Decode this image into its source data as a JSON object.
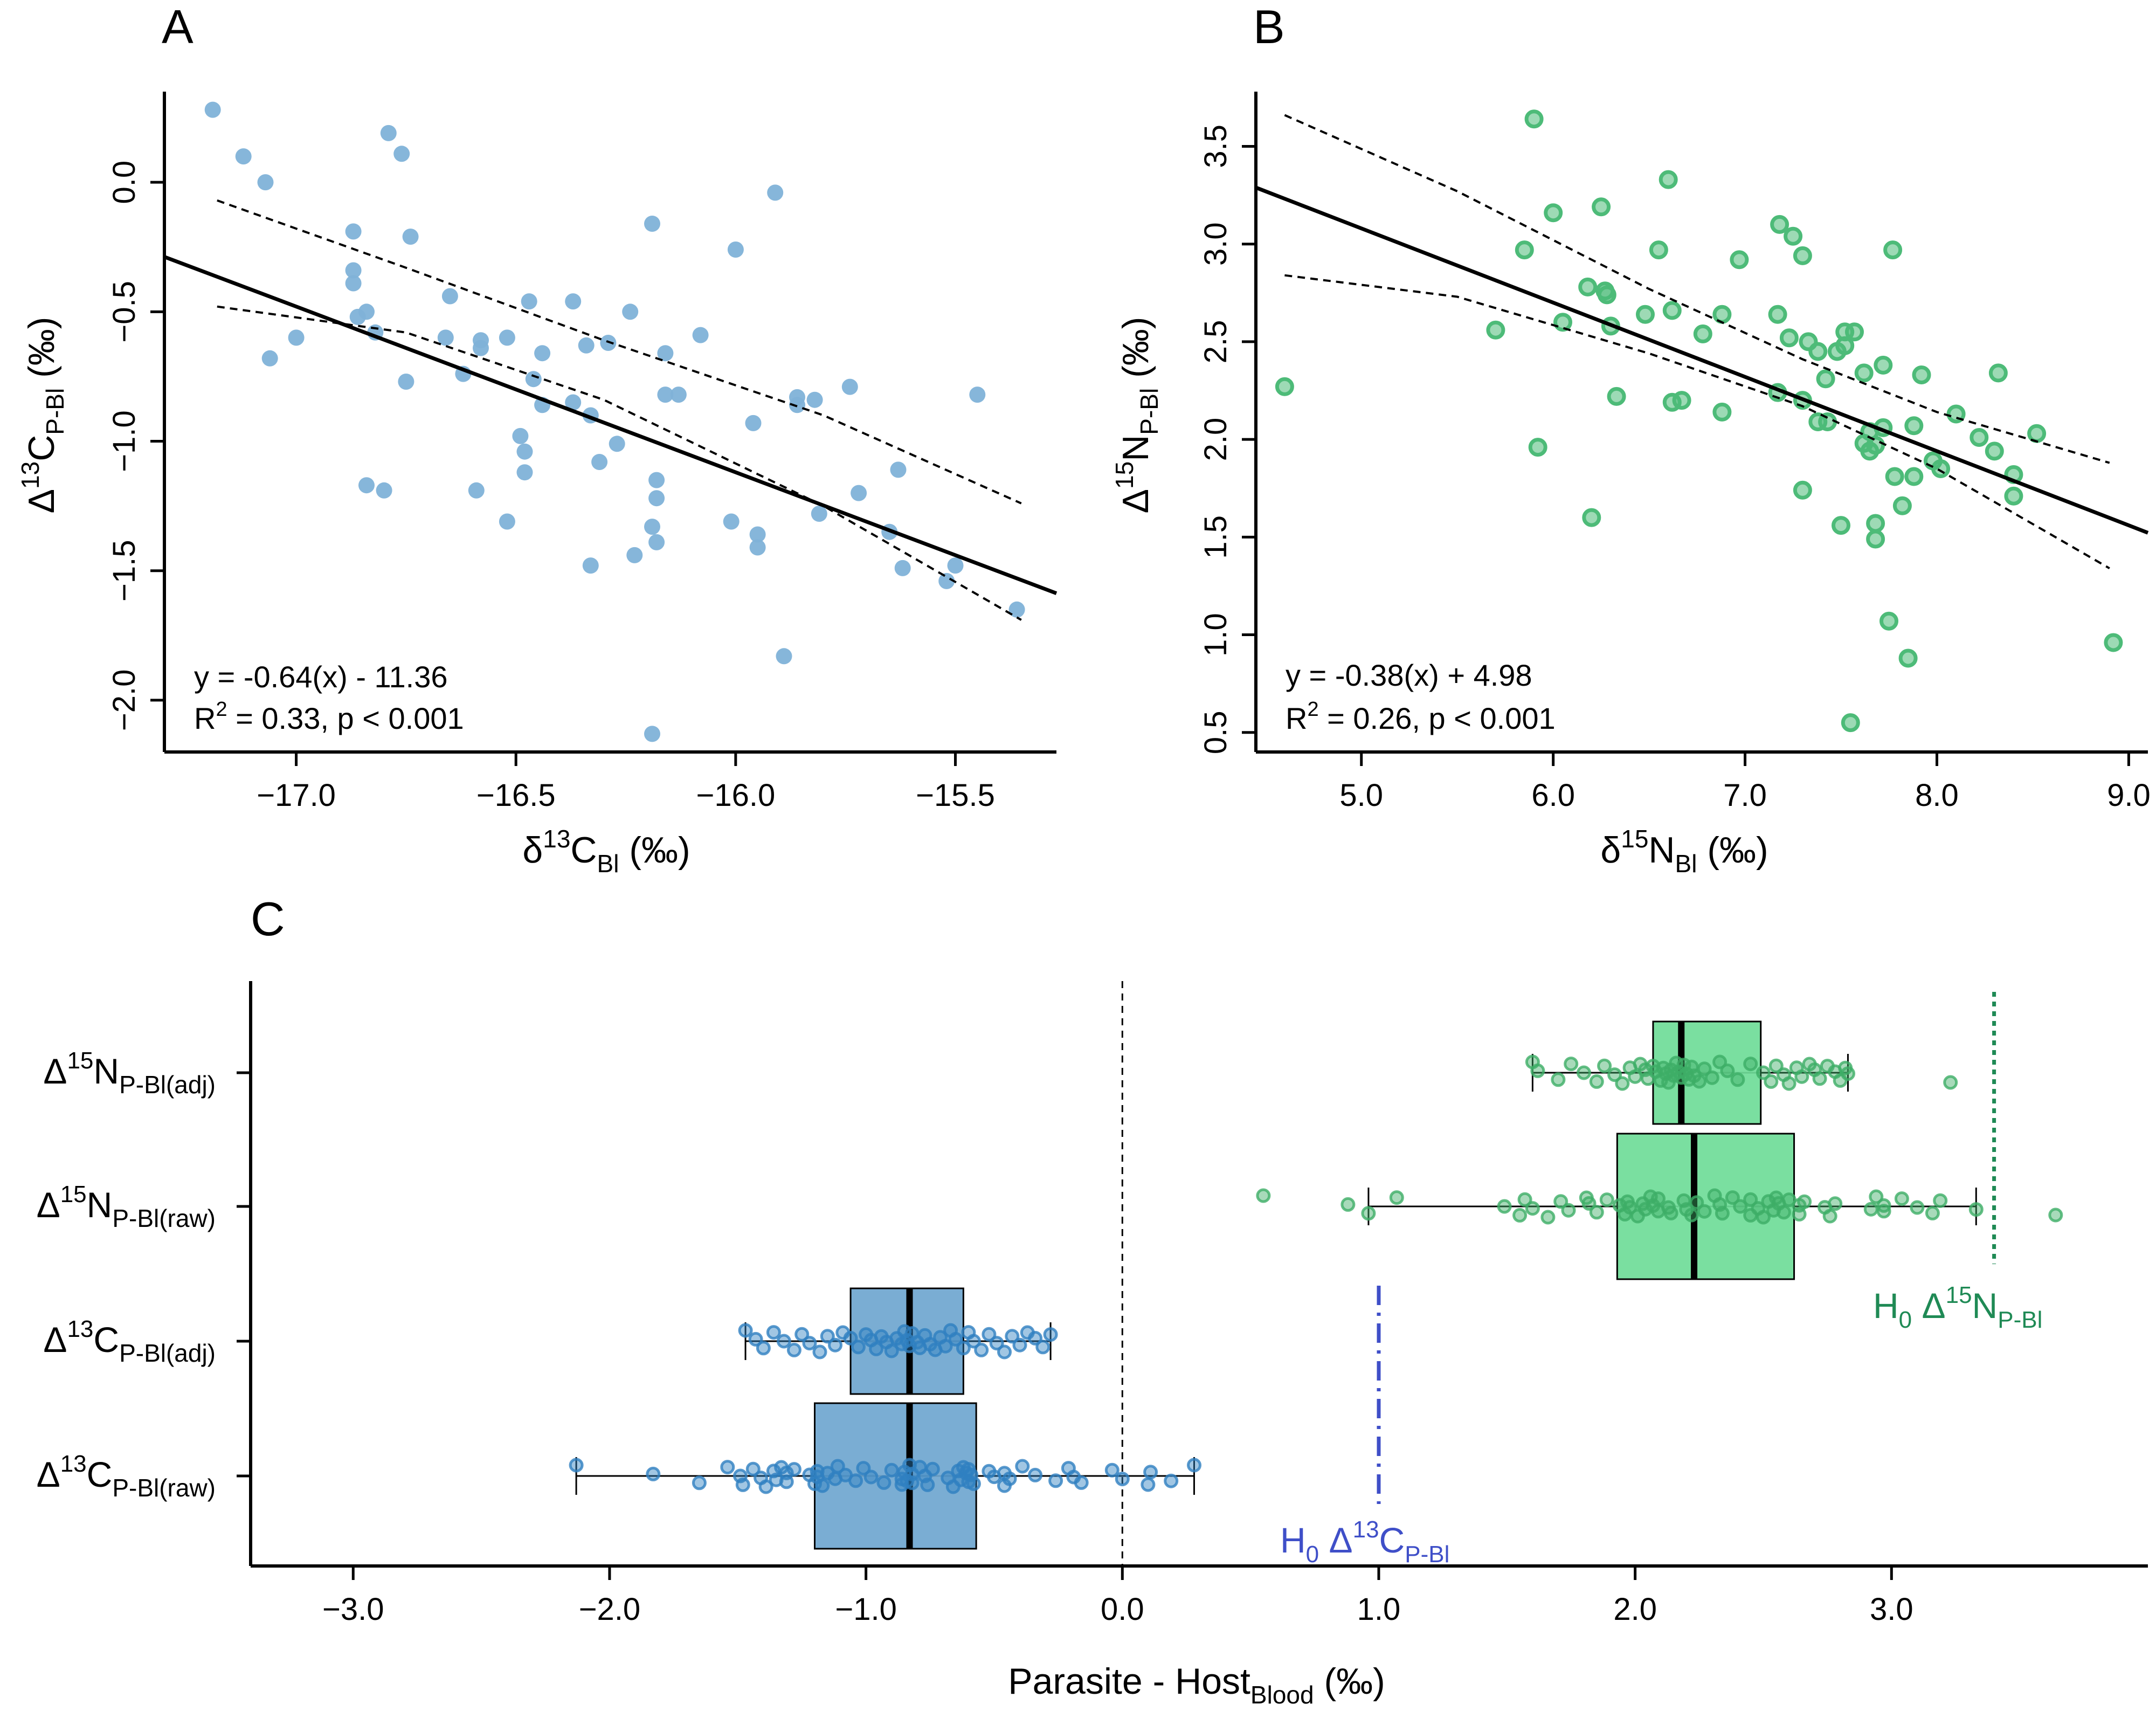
{
  "colors": {
    "carbon_point": "#7FB2D8",
    "nitrogen_point": "#4DBB78",
    "carbon_box": "#6FA6CF",
    "nitrogen_box": "#6FDC98",
    "carbon_strip": "#2F80C0",
    "nitrogen_strip": "#3DAE66",
    "h0_carbon": "#3F4FC8",
    "h0_nitrogen": "#1F8A55",
    "axis": "#000000"
  },
  "chart_data": [
    {
      "panel": "A",
      "type": "scatter",
      "xlabel": {
        "main": "δ",
        "sup": "13",
        "mid": "C",
        "sub": "Bl",
        "tail": " (‰)"
      },
      "ylabel": {
        "main": "Δ",
        "sup": "13",
        "mid": "C",
        "sub": "P-Bl",
        "tail": " (‰)"
      },
      "xlim": [
        -17.3,
        -15.27
      ],
      "ylim": [
        -2.2,
        0.35
      ],
      "xticks": [
        -17.0,
        -16.5,
        -16.0,
        -15.5
      ],
      "xtick_labels": [
        "−17.0",
        "−16.5",
        "−16.0",
        "−15.5"
      ],
      "yticks": [
        -2.0,
        -1.5,
        -1.0,
        -0.5,
        0.0
      ],
      "ytick_labels": [
        "−2.0",
        "−1.5",
        "−1.0",
        "−0.5",
        "0.0"
      ],
      "regression": {
        "slope": -0.64,
        "intercept": -11.36
      },
      "ci_upper": [
        [
          -17.18,
          -0.07
        ],
        [
          -16.75,
          -0.33
        ],
        [
          -16.3,
          -0.61
        ],
        [
          -15.8,
          -0.9
        ],
        [
          -15.35,
          -1.24
        ]
      ],
      "ci_lower": [
        [
          -17.18,
          -0.48
        ],
        [
          -16.75,
          -0.58
        ],
        [
          -16.3,
          -0.84
        ],
        [
          -15.8,
          -1.25
        ],
        [
          -15.35,
          -1.69
        ]
      ],
      "annotation": [
        "y = -0.64(x) - 11.36",
        "R",
        "2",
        " = 0.33, p < 0.001"
      ],
      "points": [
        [
          -17.19,
          0.28
        ],
        [
          -17.12,
          0.1
        ],
        [
          -17.07,
          0.0
        ],
        [
          -16.79,
          0.19
        ],
        [
          -16.76,
          0.11
        ],
        [
          -16.87,
          -0.19
        ],
        [
          -16.87,
          -0.34
        ],
        [
          -16.87,
          -0.39
        ],
        [
          -16.74,
          -0.21
        ],
        [
          -16.86,
          -0.52
        ],
        [
          -16.84,
          -0.5
        ],
        [
          -16.82,
          -0.58
        ],
        [
          -17.0,
          -0.6
        ],
        [
          -17.06,
          -0.68
        ],
        [
          -16.65,
          -0.44
        ],
        [
          -16.66,
          -0.6
        ],
        [
          -16.58,
          -0.61
        ],
        [
          -16.58,
          -0.64
        ],
        [
          -16.52,
          -0.6
        ],
        [
          -16.47,
          -0.46
        ],
        [
          -16.37,
          -0.46
        ],
        [
          -16.44,
          -0.66
        ],
        [
          -16.34,
          -0.63
        ],
        [
          -16.29,
          -0.62
        ],
        [
          -16.24,
          -0.5
        ],
        [
          -16.19,
          -0.16
        ],
        [
          -16.08,
          -0.59
        ],
        [
          -16.16,
          -0.66
        ],
        [
          -16.0,
          -0.26
        ],
        [
          -15.91,
          -0.04
        ],
        [
          -16.62,
          -0.74
        ],
        [
          -16.46,
          -0.76
        ],
        [
          -16.75,
          -0.77
        ],
        [
          -16.44,
          -0.86
        ],
        [
          -16.37,
          -0.85
        ],
        [
          -16.33,
          -0.9
        ],
        [
          -16.16,
          -0.82
        ],
        [
          -16.13,
          -0.82
        ],
        [
          -15.96,
          -0.93
        ],
        [
          -15.86,
          -0.83
        ],
        [
          -15.86,
          -0.86
        ],
        [
          -15.82,
          -0.84
        ],
        [
          -15.74,
          -0.79
        ],
        [
          -15.45,
          -0.82
        ],
        [
          -16.49,
          -0.98
        ],
        [
          -16.48,
          -1.04
        ],
        [
          -16.31,
          -1.08
        ],
        [
          -16.27,
          -1.01
        ],
        [
          -16.48,
          -1.12
        ],
        [
          -16.84,
          -1.17
        ],
        [
          -16.8,
          -1.19
        ],
        [
          -16.59,
          -1.19
        ],
        [
          -16.18,
          -1.15
        ],
        [
          -16.18,
          -1.22
        ],
        [
          -15.63,
          -1.11
        ],
        [
          -15.72,
          -1.2
        ],
        [
          -15.81,
          -1.28
        ],
        [
          -16.01,
          -1.31
        ],
        [
          -16.52,
          -1.31
        ],
        [
          -16.19,
          -1.33
        ],
        [
          -16.18,
          -1.39
        ],
        [
          -15.95,
          -1.36
        ],
        [
          -15.95,
          -1.41
        ],
        [
          -15.65,
          -1.35
        ],
        [
          -16.23,
          -1.44
        ],
        [
          -16.33,
          -1.48
        ],
        [
          -15.62,
          -1.49
        ],
        [
          -15.5,
          -1.48
        ],
        [
          -15.52,
          -1.54
        ],
        [
          -15.36,
          -1.65
        ],
        [
          -15.89,
          -1.83
        ],
        [
          -16.19,
          -2.13
        ]
      ]
    },
    {
      "panel": "B",
      "type": "scatter",
      "xlabel": {
        "main": "δ",
        "sup": "15",
        "mid": "N",
        "sub": "Bl",
        "tail": " (‰)"
      },
      "ylabel": {
        "main": "Δ",
        "sup": "15",
        "mid": "N",
        "sub": "P-Bl",
        "tail": " (‰)"
      },
      "xlim": [
        4.45,
        9.1
      ],
      "ylim": [
        0.4,
        3.78
      ],
      "xticks": [
        5.0,
        6.0,
        7.0,
        8.0,
        9.0
      ],
      "xtick_labels": [
        "5.0",
        "6.0",
        "7.0",
        "8.0",
        "9.0"
      ],
      "yticks": [
        0.5,
        1.0,
        1.5,
        2.0,
        2.5,
        3.0,
        3.5
      ],
      "ytick_labels": [
        "0.5",
        "1.0",
        "1.5",
        "2.0",
        "2.5",
        "3.0",
        "3.5"
      ],
      "regression": {
        "slope": -0.38,
        "intercept": 4.98
      },
      "ci_upper": [
        [
          4.6,
          3.66
        ],
        [
          5.5,
          3.27
        ],
        [
          6.5,
          2.77
        ],
        [
          7.3,
          2.41
        ],
        [
          8.0,
          2.14
        ],
        [
          8.9,
          1.88
        ]
      ],
      "ci_lower": [
        [
          4.6,
          2.84
        ],
        [
          5.5,
          2.73
        ],
        [
          6.5,
          2.44
        ],
        [
          7.3,
          2.17
        ],
        [
          8.0,
          1.85
        ],
        [
          8.9,
          1.34
        ]
      ],
      "annotation": [
        "y = -0.38(x) + 4.98",
        "R",
        "2",
        " = 0.26, p < 0.001"
      ],
      "points": [
        [
          4.6,
          2.27
        ],
        [
          5.9,
          3.64
        ],
        [
          6.6,
          3.33
        ],
        [
          5.85,
          2.97
        ],
        [
          6.0,
          3.16
        ],
        [
          6.25,
          3.19
        ],
        [
          6.55,
          2.97
        ],
        [
          7.18,
          3.1
        ],
        [
          7.25,
          3.04
        ],
        [
          7.3,
          2.94
        ],
        [
          6.97,
          2.92
        ],
        [
          7.77,
          2.97
        ],
        [
          6.18,
          2.78
        ],
        [
          6.27,
          2.76
        ],
        [
          6.28,
          2.74
        ],
        [
          6.62,
          2.66
        ],
        [
          6.48,
          2.64
        ],
        [
          6.88,
          2.64
        ],
        [
          7.17,
          2.64
        ],
        [
          6.78,
          2.54
        ],
        [
          6.05,
          2.6
        ],
        [
          6.3,
          2.58
        ],
        [
          5.7,
          2.56
        ],
        [
          7.23,
          2.52
        ],
        [
          7.33,
          2.5
        ],
        [
          7.52,
          2.48
        ],
        [
          7.57,
          2.55
        ],
        [
          7.52,
          2.55
        ],
        [
          7.48,
          2.45
        ],
        [
          7.38,
          2.45
        ],
        [
          7.62,
          2.34
        ],
        [
          7.72,
          2.38
        ],
        [
          7.42,
          2.31
        ],
        [
          7.92,
          2.33
        ],
        [
          8.32,
          2.34
        ],
        [
          7.17,
          2.24
        ],
        [
          6.33,
          2.22
        ],
        [
          6.62,
          2.19
        ],
        [
          6.67,
          2.2
        ],
        [
          7.3,
          2.2
        ],
        [
          6.88,
          2.14
        ],
        [
          7.38,
          2.09
        ],
        [
          7.43,
          2.09
        ],
        [
          7.65,
          2.04
        ],
        [
          7.72,
          2.06
        ],
        [
          7.88,
          2.07
        ],
        [
          8.1,
          2.13
        ],
        [
          8.22,
          2.01
        ],
        [
          8.52,
          2.03
        ],
        [
          8.3,
          1.94
        ],
        [
          7.62,
          1.98
        ],
        [
          7.65,
          1.94
        ],
        [
          7.68,
          1.97
        ],
        [
          7.98,
          1.89
        ],
        [
          8.02,
          1.85
        ],
        [
          5.92,
          1.96
        ],
        [
          7.78,
          1.81
        ],
        [
          7.88,
          1.81
        ],
        [
          8.4,
          1.82
        ],
        [
          7.3,
          1.74
        ],
        [
          8.4,
          1.71
        ],
        [
          7.82,
          1.66
        ],
        [
          7.5,
          1.56
        ],
        [
          7.68,
          1.57
        ],
        [
          7.68,
          1.49
        ],
        [
          6.2,
          1.6
        ],
        [
          7.75,
          1.07
        ],
        [
          7.85,
          0.88
        ],
        [
          8.92,
          0.96
        ],
        [
          7.55,
          0.55
        ]
      ]
    },
    {
      "panel": "C",
      "type": "box",
      "xlabel": {
        "main": "Parasite - Host",
        "sub": "Blood",
        "tail": " (‰)"
      },
      "xlim": [
        -3.4,
        4.0
      ],
      "xticks": [
        -3.0,
        -2.0,
        -1.0,
        0.0,
        1.0,
        2.0,
        3.0
      ],
      "xtick_labels": [
        "−3.0",
        "−2.0",
        "−1.0",
        "0.0",
        "1.0",
        "2.0",
        "3.0"
      ],
      "reference_line": 0.0,
      "h0_carbon": {
        "x": 1.0,
        "label": {
          "pre": "H",
          "sub0": "0",
          "mid": " Δ",
          "sup": "13",
          "el": "C",
          "sub": "P-Bl"
        }
      },
      "h0_nitrogen": {
        "x": 3.4,
        "label": {
          "pre": "H",
          "sub0": "0",
          "mid": " Δ",
          "sup": "15",
          "el": "N",
          "sub": "P-Bl"
        }
      },
      "rows": [
        {
          "label": {
            "main": "Δ",
            "sup": "15",
            "mid": "N",
            "sub": "P-Bl(adj)"
          },
          "group": "nitrogen",
          "whisker": [
            1.6,
            2.83
          ],
          "q1": 2.07,
          "median": 2.18,
          "q3": 2.49,
          "points": [
            1.6,
            1.62,
            1.7,
            1.75,
            1.8,
            1.85,
            1.88,
            1.92,
            1.95,
            1.98,
            2.0,
            2.02,
            2.04,
            2.05,
            2.07,
            2.08,
            2.1,
            2.11,
            2.12,
            2.13,
            2.14,
            2.15,
            2.16,
            2.17,
            2.18,
            2.19,
            2.2,
            2.21,
            2.22,
            2.23,
            2.25,
            2.27,
            2.3,
            2.33,
            2.36,
            2.4,
            2.45,
            2.5,
            2.53,
            2.55,
            2.58,
            2.6,
            2.63,
            2.65,
            2.68,
            2.7,
            2.72,
            2.75,
            2.78,
            2.8,
            2.82,
            2.83,
            3.23
          ]
        },
        {
          "label": {
            "main": "Δ",
            "sup": "15",
            "mid": "N",
            "sub": "P-Bl(raw)"
          },
          "group": "nitrogen",
          "whisker": [
            0.96,
            3.33
          ],
          "q1": 1.93,
          "median": 2.23,
          "q3": 2.62,
          "points": [
            0.55,
            0.88,
            0.96,
            1.07,
            1.49,
            1.55,
            1.57,
            1.6,
            1.66,
            1.71,
            1.74,
            1.81,
            1.82,
            1.85,
            1.89,
            1.94,
            1.96,
            1.97,
            1.98,
            2.01,
            2.03,
            2.04,
            2.06,
            2.07,
            2.09,
            2.09,
            2.13,
            2.14,
            2.19,
            2.2,
            2.22,
            2.24,
            2.27,
            2.31,
            2.33,
            2.34,
            2.38,
            2.41,
            2.45,
            2.45,
            2.48,
            2.5,
            2.52,
            2.54,
            2.55,
            2.56,
            2.58,
            2.6,
            2.64,
            2.64,
            2.66,
            2.74,
            2.76,
            2.78,
            2.92,
            2.94,
            2.97,
            2.97,
            3.04,
            3.1,
            3.16,
            3.19,
            3.33,
            3.64
          ]
        },
        {
          "label": {
            "main": "Δ",
            "sup": "13",
            "mid": "C",
            "sub": "P-Bl(adj)"
          },
          "group": "carbon",
          "whisker": [
            -1.47,
            -0.28
          ],
          "q1": -1.06,
          "median": -0.83,
          "q3": -0.62,
          "points": [
            -1.47,
            -1.43,
            -1.4,
            -1.36,
            -1.32,
            -1.28,
            -1.25,
            -1.22,
            -1.18,
            -1.15,
            -1.12,
            -1.09,
            -1.06,
            -1.03,
            -1.0,
            -0.98,
            -0.96,
            -0.94,
            -0.92,
            -0.9,
            -0.88,
            -0.86,
            -0.85,
            -0.84,
            -0.83,
            -0.82,
            -0.8,
            -0.79,
            -0.77,
            -0.75,
            -0.73,
            -0.71,
            -0.69,
            -0.67,
            -0.65,
            -0.62,
            -0.6,
            -0.58,
            -0.55,
            -0.52,
            -0.49,
            -0.46,
            -0.43,
            -0.4,
            -0.37,
            -0.34,
            -0.31,
            -0.28
          ]
        },
        {
          "label": {
            "main": "Δ",
            "sup": "13",
            "mid": "C",
            "sub": "P-Bl(raw)"
          },
          "group": "carbon",
          "whisker": [
            -2.13,
            0.28
          ],
          "q1": -1.2,
          "median": -0.83,
          "q3": -0.57,
          "points": [
            -2.13,
            -1.83,
            -1.65,
            -1.54,
            -1.49,
            -1.48,
            -1.44,
            -1.41,
            -1.39,
            -1.36,
            -1.35,
            -1.33,
            -1.31,
            -1.31,
            -1.28,
            -1.22,
            -1.2,
            -1.19,
            -1.19,
            -1.17,
            -1.15,
            -1.12,
            -1.11,
            -1.08,
            -1.04,
            -1.01,
            -0.98,
            -0.93,
            -0.9,
            -0.86,
            -0.86,
            -0.85,
            -0.84,
            -0.83,
            -0.82,
            -0.82,
            -0.79,
            -0.77,
            -0.76,
            -0.74,
            -0.68,
            -0.66,
            -0.64,
            -0.63,
            -0.62,
            -0.61,
            -0.6,
            -0.6,
            -0.59,
            -0.58,
            -0.52,
            -0.5,
            -0.46,
            -0.46,
            -0.44,
            -0.39,
            -0.34,
            -0.26,
            -0.21,
            -0.19,
            -0.16,
            -0.04,
            0.0,
            0.1,
            0.11,
            0.19,
            0.28
          ]
        }
      ]
    }
  ]
}
